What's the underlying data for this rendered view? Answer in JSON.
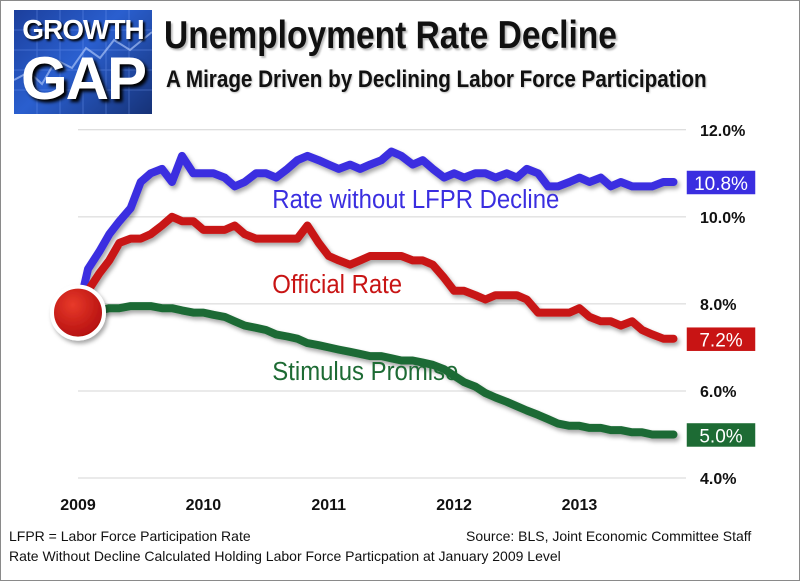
{
  "logo": {
    "line1": "GROWTH",
    "line2": "GAP"
  },
  "header": {
    "title": "Unemployment Rate Decline",
    "subtitle": "A Mirage Driven by Declining Labor Force Participation"
  },
  "footer": {
    "lfpr_definition": "LFPR = Labor Force Participation Rate",
    "source": "Source:  BLS, Joint Economic Committee Staff",
    "method_note": "Rate Without Decline Calculated Holding Labor Force Particpation at January 2009 Level"
  },
  "colors": {
    "rate_without_decline": "#3a2ee0",
    "official_rate": "#c81414",
    "stimulus_promise": "#1d6b34",
    "gridline": "#d4d4d4"
  },
  "chart_data": {
    "type": "line",
    "title": "Unemployment Rate Decline",
    "subtitle": "A Mirage Driven by Declining Labor Force Participation",
    "xlabel": "",
    "ylabel": "",
    "ylim": [
      4.0,
      12.5
    ],
    "xlim": [
      2009.0,
      2013.85
    ],
    "x_ticks": [
      {
        "value": 2009,
        "label": "2009"
      },
      {
        "value": 2010,
        "label": "2010"
      },
      {
        "value": 2011,
        "label": "2011"
      },
      {
        "value": 2012,
        "label": "2012"
      },
      {
        "value": 2013,
        "label": "2013"
      }
    ],
    "y_ticks": [
      {
        "value": 4.0,
        "label": "4.0%"
      },
      {
        "value": 6.0,
        "label": "6.0%"
      },
      {
        "value": 8.0,
        "label": "8.0%"
      },
      {
        "value": 10.0,
        "label": "10.0%"
      },
      {
        "value": 12.0,
        "label": "12.0%"
      }
    ],
    "grid": true,
    "start_marker": {
      "x": 2009.0,
      "y": 7.8
    },
    "series": [
      {
        "key": "rate_without_decline",
        "name": "Rate without LFPR Decline",
        "end_label": "10.8%",
        "label_at": [
          2010.55,
          10.2
        ],
        "x": [
          2009.0,
          2009.08,
          2009.17,
          2009.25,
          2009.33,
          2009.42,
          2009.5,
          2009.58,
          2009.67,
          2009.75,
          2009.83,
          2009.92,
          2010.0,
          2010.08,
          2010.17,
          2010.25,
          2010.33,
          2010.42,
          2010.5,
          2010.58,
          2010.67,
          2010.75,
          2010.83,
          2010.92,
          2011.0,
          2011.08,
          2011.17,
          2011.25,
          2011.33,
          2011.42,
          2011.5,
          2011.58,
          2011.67,
          2011.75,
          2011.83,
          2011.92,
          2012.0,
          2012.08,
          2012.17,
          2012.25,
          2012.33,
          2012.42,
          2012.5,
          2012.58,
          2012.67,
          2012.75,
          2012.83,
          2012.92,
          2013.0,
          2013.08,
          2013.17,
          2013.25,
          2013.33,
          2013.42,
          2013.5,
          2013.58,
          2013.67,
          2013.75
        ],
        "values": [
          7.8,
          8.8,
          9.2,
          9.6,
          9.9,
          10.2,
          10.8,
          11.0,
          11.1,
          10.8,
          11.4,
          11.0,
          11.0,
          11.0,
          10.9,
          10.7,
          10.8,
          11.0,
          11.0,
          10.9,
          11.1,
          11.3,
          11.4,
          11.3,
          11.2,
          11.1,
          11.2,
          11.1,
          11.2,
          11.3,
          11.5,
          11.4,
          11.2,
          11.3,
          11.1,
          10.9,
          11.0,
          10.9,
          11.0,
          11.0,
          10.9,
          11.0,
          10.9,
          11.1,
          11.0,
          10.7,
          10.7,
          10.8,
          10.9,
          10.8,
          10.9,
          10.7,
          10.8,
          10.7,
          10.7,
          10.7,
          10.8,
          10.8
        ]
      },
      {
        "key": "official_rate",
        "name": "Official Rate",
        "end_label": "7.2%",
        "label_at": [
          2010.55,
          8.25
        ],
        "x": [
          2009.0,
          2009.08,
          2009.17,
          2009.25,
          2009.33,
          2009.42,
          2009.5,
          2009.58,
          2009.67,
          2009.75,
          2009.83,
          2009.92,
          2010.0,
          2010.08,
          2010.17,
          2010.25,
          2010.33,
          2010.42,
          2010.5,
          2010.58,
          2010.67,
          2010.75,
          2010.83,
          2010.92,
          2011.0,
          2011.08,
          2011.17,
          2011.25,
          2011.33,
          2011.42,
          2011.5,
          2011.58,
          2011.67,
          2011.75,
          2011.83,
          2011.92,
          2012.0,
          2012.08,
          2012.17,
          2012.25,
          2012.33,
          2012.42,
          2012.5,
          2012.58,
          2012.67,
          2012.75,
          2012.83,
          2012.92,
          2013.0,
          2013.08,
          2013.17,
          2013.25,
          2013.33,
          2013.42,
          2013.5,
          2013.58,
          2013.67,
          2013.75
        ],
        "values": [
          7.8,
          8.3,
          8.7,
          9.0,
          9.4,
          9.5,
          9.5,
          9.6,
          9.8,
          10.0,
          9.9,
          9.9,
          9.7,
          9.7,
          9.7,
          9.8,
          9.6,
          9.5,
          9.5,
          9.5,
          9.5,
          9.5,
          9.8,
          9.4,
          9.1,
          9.0,
          8.9,
          9.0,
          9.1,
          9.1,
          9.1,
          9.1,
          9.0,
          9.0,
          8.9,
          8.6,
          8.3,
          8.3,
          8.2,
          8.1,
          8.2,
          8.2,
          8.2,
          8.1,
          7.8,
          7.8,
          7.8,
          7.8,
          7.9,
          7.7,
          7.6,
          7.6,
          7.5,
          7.6,
          7.4,
          7.3,
          7.2,
          7.2
        ]
      },
      {
        "key": "stimulus_promise",
        "name": "Stimulus Promise",
        "end_label": "5.0%",
        "label_at": [
          2010.55,
          6.25
        ],
        "x": [
          2009.0,
          2009.08,
          2009.17,
          2009.25,
          2009.33,
          2009.42,
          2009.5,
          2009.58,
          2009.67,
          2009.75,
          2009.83,
          2009.92,
          2010.0,
          2010.08,
          2010.17,
          2010.25,
          2010.33,
          2010.42,
          2010.5,
          2010.58,
          2010.67,
          2010.75,
          2010.83,
          2010.92,
          2011.0,
          2011.08,
          2011.17,
          2011.25,
          2011.33,
          2011.42,
          2011.5,
          2011.58,
          2011.67,
          2011.75,
          2011.83,
          2011.92,
          2012.0,
          2012.08,
          2012.17,
          2012.25,
          2012.33,
          2012.42,
          2012.5,
          2012.58,
          2012.67,
          2012.75,
          2012.83,
          2012.92,
          2013.0,
          2013.08,
          2013.17,
          2013.25,
          2013.33,
          2013.42,
          2013.5,
          2013.58,
          2013.67,
          2013.75
        ],
        "values": [
          7.8,
          7.8,
          7.85,
          7.9,
          7.9,
          7.95,
          7.95,
          7.95,
          7.9,
          7.9,
          7.85,
          7.8,
          7.8,
          7.75,
          7.7,
          7.6,
          7.5,
          7.45,
          7.4,
          7.3,
          7.25,
          7.2,
          7.1,
          7.05,
          7.0,
          6.95,
          6.9,
          6.85,
          6.8,
          6.8,
          6.75,
          6.7,
          6.7,
          6.65,
          6.6,
          6.5,
          6.35,
          6.2,
          6.1,
          5.95,
          5.85,
          5.75,
          5.65,
          5.55,
          5.45,
          5.35,
          5.25,
          5.2,
          5.2,
          5.15,
          5.15,
          5.1,
          5.1,
          5.05,
          5.05,
          5.0,
          5.0,
          5.0
        ]
      }
    ]
  }
}
